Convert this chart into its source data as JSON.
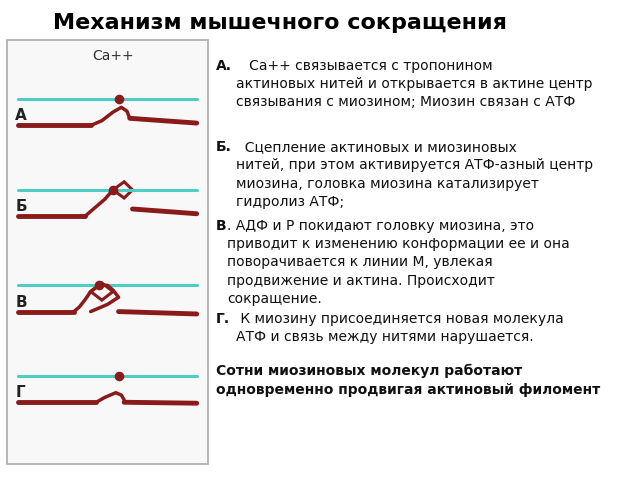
{
  "title": "Механизм мышечного сокращения",
  "title_fontsize": 16,
  "title_fontweight": "bold",
  "background_color": "#ffffff",
  "box_color": "#f0f0f0",
  "actin_color": "#4ECDC4",
  "myosin_color": "#8B1A1A",
  "dot_color": "#8B1A1A",
  "ca_label": "Ca++",
  "row_labels": [
    "А",
    "Б",
    "В",
    "Г"
  ],
  "text_A_bold": "А.",
  "text_A": "   Са++ связывается с тропонином\nактиновых нитей и открывается в актине центр\nсвязывания с миозином; Миозин связан с АТФ",
  "text_B_bold": "Б.",
  "text_B": "  Сцепление актиновых и миозиновых\nнитей, при этом активируется АТФ-азный центр\nмиозина, головка миозина катализирует\nгидролиз АТФ;",
  "text_V_bold": "В",
  "text_V": ". АДФ и Р покидают головку миозина, это\nприводит к изменению конформации ее и она\nповорачивается к линии М, увлекая\nпродвижение и актина. Происходит\nсокращение.",
  "text_G_bold": "Г.",
  "text_G": " К миозину присоединяется новая молекула\nАТФ и связь между нитями нарушается.",
  "text_footer_bold": "Сотни миозиновых молекул работают\nодновременно продвигая актиновый филомент",
  "label_fontsize": 11,
  "body_fontsize": 10
}
